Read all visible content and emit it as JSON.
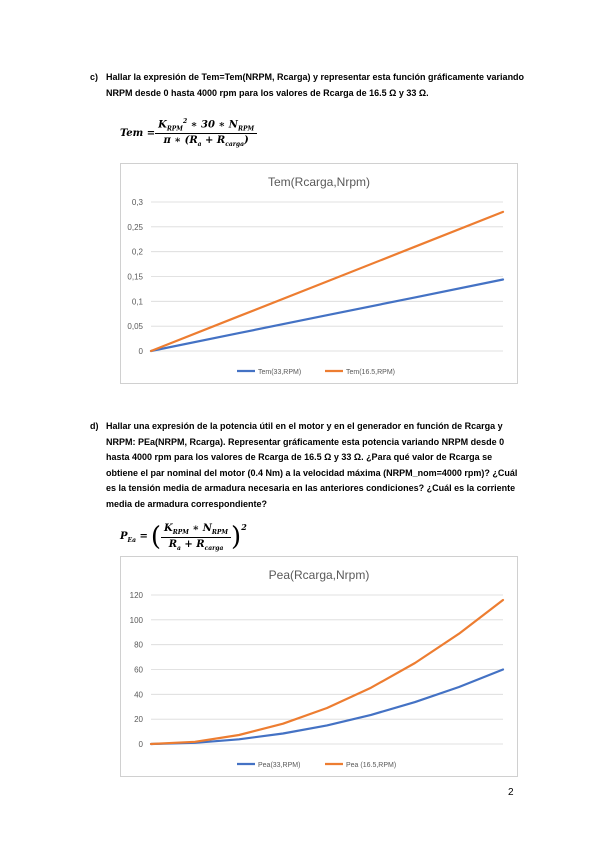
{
  "question_c": {
    "label": "c)",
    "text": "Hallar la expresión de Tem=Tem(NRPM, Rcarga) y representar esta función gráficamente variando NRPM desde 0 hasta 4000 rpm para los valores de Rcarga de 16.5 Ω y 33 Ω.",
    "equation": {
      "lhs": "Tem =",
      "num_k": "K",
      "num_k_sub": "RPM",
      "num_k_sup": "2",
      "num_rest": " ∗ 30 ∗ N",
      "num_n_sub": "RPM",
      "den_pre": "π ∗ (R",
      "den_a_sub": "a",
      "den_mid": " + R",
      "den_c_sub": "carga",
      "den_post": ")"
    }
  },
  "question_d": {
    "label": "d)",
    "text": "Hallar una expresión de la potencia útil en el motor y en el generador en función de Rcarga y NRPM: PEa(NRPM, Rcarga). Representar gráficamente esta potencia variando NRPM desde 0 hasta 4000 rpm para los valores de Rcarga de 16.5 Ω y 33 Ω. ¿Para qué valor de Rcarga se obtiene el par nominal del motor (0.4 Nm) a la velocidad máxima (NRPM_nom=4000 rpm)? ¿Cuál es la tensión media de armadura necesaria en las anteriores condiciones? ¿Cuál es la corriente media de armadura correspondiente?",
    "equation": {
      "lhs_p": "P",
      "lhs_sub": "Ea",
      "lhs_eq": " =",
      "lparen": "(",
      "num_k": "K",
      "num_k_sub": "RPM",
      "num_rest": " ∗ N",
      "num_n_sub": "RPM",
      "den_pre": "R",
      "den_a_sub": "a",
      "den_mid": " + R",
      "den_c_sub": "carga",
      "rparen": ")",
      "power": "2"
    }
  },
  "chart_data": [
    {
      "type": "line",
      "title": "Tem(Rcarga,Nrpm)",
      "xlabel": "",
      "ylabel": "",
      "x": [
        0,
        4000
      ],
      "ylim": [
        0,
        0.3
      ],
      "yticks": [
        "0",
        "0,05",
        "0,1",
        "0,15",
        "0,2",
        "0,25",
        "0,3"
      ],
      "ytick_values": [
        0,
        0.05,
        0.1,
        0.15,
        0.2,
        0.25,
        0.3
      ],
      "grid": true,
      "legend": "bottom",
      "series": [
        {
          "name": "Tem(33,RPM)",
          "color": "#4472c4",
          "x": [
            0,
            1000,
            2000,
            3000,
            4000
          ],
          "values": [
            0,
            0.036,
            0.072,
            0.108,
            0.144
          ]
        },
        {
          "name": "Tem(16.5,RPM)",
          "color": "#ed7d31",
          "x": [
            0,
            1000,
            2000,
            3000,
            4000
          ],
          "values": [
            0,
            0.07,
            0.14,
            0.21,
            0.28
          ]
        }
      ]
    },
    {
      "type": "line",
      "title": "Pea(Rcarga,Nrpm)",
      "xlabel": "",
      "ylabel": "",
      "x": [
        0,
        4000
      ],
      "ylim": [
        0,
        120
      ],
      "yticks": [
        "0",
        "20",
        "40",
        "60",
        "80",
        "100",
        "120"
      ],
      "ytick_values": [
        0,
        20,
        40,
        60,
        80,
        100,
        120
      ],
      "grid": true,
      "legend": "bottom",
      "series": [
        {
          "name": "Pea(33,RPM)",
          "color": "#4472c4",
          "x": [
            0,
            500,
            1000,
            1500,
            2000,
            2500,
            3000,
            3500,
            4000
          ],
          "values": [
            0,
            0.94,
            3.75,
            8.44,
            15,
            23.44,
            33.75,
            45.94,
            60
          ]
        },
        {
          "name": "Pea (16.5,RPM)",
          "color": "#ed7d31",
          "x": [
            0,
            500,
            1000,
            1500,
            2000,
            2500,
            3000,
            3500,
            4000
          ],
          "values": [
            0,
            1.81,
            7.25,
            16.31,
            29,
            45.31,
            65.25,
            88.81,
            116
          ]
        }
      ]
    }
  ],
  "page_number": "2"
}
